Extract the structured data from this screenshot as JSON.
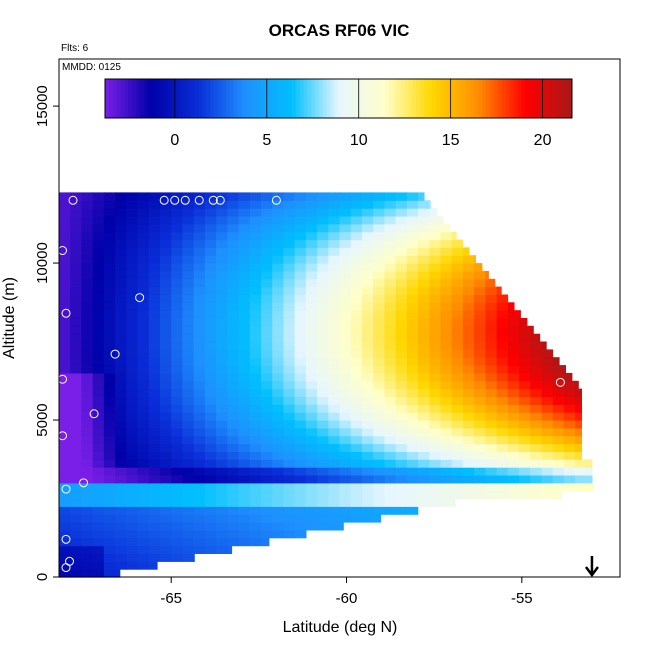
{
  "chart_data": {
    "type": "heatmap",
    "title": "ORCAS RF06 VIC",
    "xlabel": "Latitude (deg N)",
    "ylabel": "Altitude (m)",
    "xlim": [
      -68.2,
      -52.2
    ],
    "ylim": [
      0,
      16500
    ],
    "x_ticks": [
      -65,
      -60,
      -55
    ],
    "x_tick_labels": [
      "-65",
      "-60",
      "-55"
    ],
    "y_ticks": [
      0,
      5000,
      10000,
      15000
    ],
    "y_tick_labels": [
      "0",
      "5000",
      "10000",
      "15000"
    ],
    "annotations": {
      "flights": "Flts: 6",
      "date": "MMDD: 0125"
    },
    "colorbar": {
      "range": [
        -3.8,
        21.6
      ],
      "ticks": [
        0,
        5,
        10,
        15,
        20
      ],
      "tick_labels": [
        "0",
        "5",
        "10",
        "15",
        "20"
      ],
      "colors": [
        "#7a1fe8",
        "#0000a8",
        "#0a2ed8",
        "#1e90ff",
        "#00bfff",
        "#e6f6ff",
        "#ffffc8",
        "#ffd700",
        "#ff8c00",
        "#ff0000",
        "#a81818"
      ]
    },
    "marker_color": "#ffffff",
    "markers": [
      {
        "x": -67.8,
        "y": 12000
      },
      {
        "x": -65.2,
        "y": 12000
      },
      {
        "x": -64.9,
        "y": 12000
      },
      {
        "x": -64.6,
        "y": 12000
      },
      {
        "x": -64.2,
        "y": 12000
      },
      {
        "x": -63.8,
        "y": 12000
      },
      {
        "x": -63.6,
        "y": 12000
      },
      {
        "x": -62.0,
        "y": 12000
      },
      {
        "x": -68.1,
        "y": 10400
      },
      {
        "x": -65.9,
        "y": 8900
      },
      {
        "x": -68.0,
        "y": 8400
      },
      {
        "x": -66.6,
        "y": 7100
      },
      {
        "x": -68.1,
        "y": 6300
      },
      {
        "x": -67.2,
        "y": 5200
      },
      {
        "x": -68.1,
        "y": 4500
      },
      {
        "x": -67.5,
        "y": 3000
      },
      {
        "x": -68.0,
        "y": 2800
      },
      {
        "x": -68.0,
        "y": 1200
      },
      {
        "x": -67.9,
        "y": 500
      },
      {
        "x": -68.0,
        "y": 300
      },
      {
        "x": -53.9,
        "y": 6200
      }
    ],
    "arrow": {
      "x": -53.0,
      "direction": "down"
    }
  }
}
